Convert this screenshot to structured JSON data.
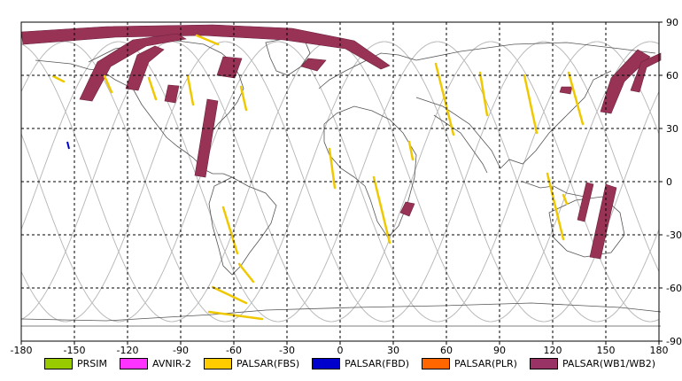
{
  "map": {
    "x_ticks": [
      "-180",
      "-150",
      "-120",
      "-90",
      "-60",
      "-30",
      "0",
      "30",
      "60",
      "90",
      "120",
      "150",
      "180"
    ],
    "y_ticks": [
      "90",
      "60",
      "30",
      "0",
      "-30",
      "-60",
      "-90"
    ],
    "lon_range": [
      -180,
      180
    ],
    "lat_range": [
      -90,
      90
    ],
    "grid": "dashed"
  },
  "legend": {
    "items": [
      {
        "label": "PRSIM",
        "color": "#99cc00"
      },
      {
        "label": "AVNIR-2",
        "color": "#ff33ff"
      },
      {
        "label": "PALSAR(FBS)",
        "color": "#ffcc00"
      },
      {
        "label": "PALSAR(FBD)",
        "color": "#0000cc"
      },
      {
        "label": "PALSAR(PLR)",
        "color": "#ff6600"
      },
      {
        "label": "PALSAR(WB1/WB2)",
        "color": "#993366"
      }
    ]
  },
  "colors": {
    "fbs": "#f0c800",
    "fbd": "#0000cc",
    "wb": "#993355",
    "coast": "#444444",
    "orbit": "#bbbbbb"
  }
}
